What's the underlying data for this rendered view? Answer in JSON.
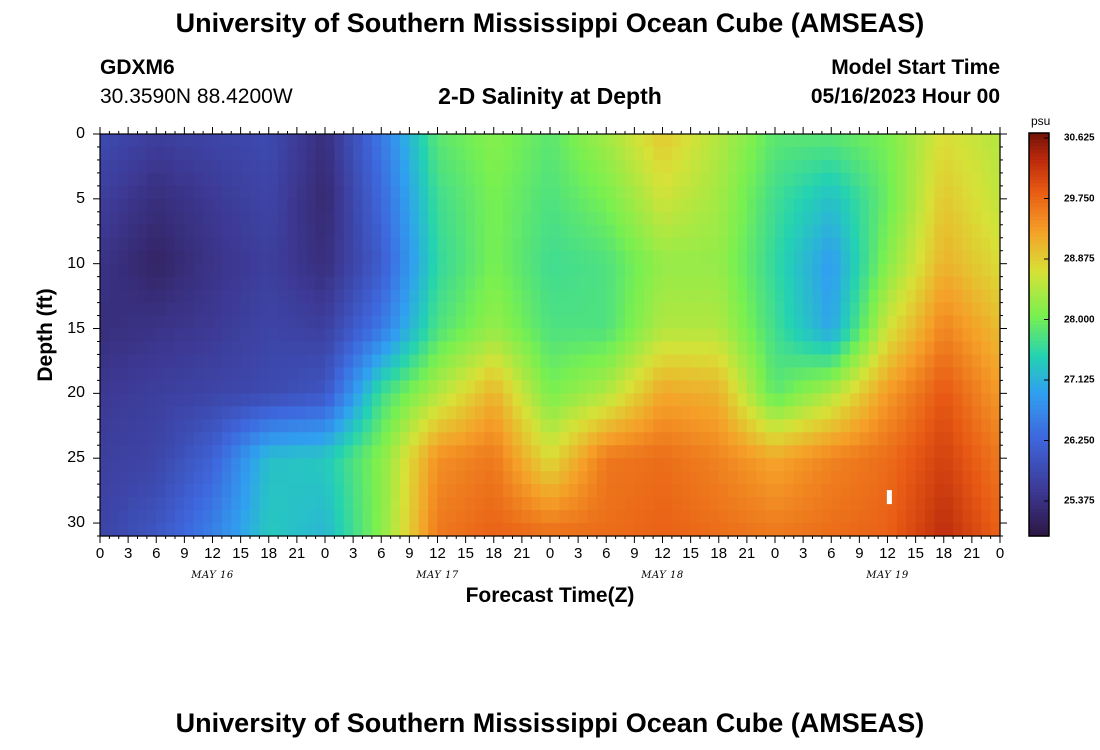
{
  "header": {
    "title": "University of Southern Mississippi Ocean Cube (AMSEAS)",
    "station_id": "GDXM6",
    "coords": "30.3590N  88.4200W",
    "subtitle": "2-D Salinity at Depth",
    "model_start_label": "Model Start Time",
    "model_start_value": "05/16/2023 Hour 00"
  },
  "footer": {
    "title": "University of Southern Mississippi Ocean Cube (AMSEAS)"
  },
  "chart_data": {
    "type": "heatmap",
    "title": "2-D Salinity at Depth",
    "xlabel": "Forecast Time(Z)",
    "ylabel": "Depth (ft)",
    "colorbar_unit": "psu",
    "x_range_hours": [
      0,
      96
    ],
    "y_range_ft": [
      0,
      31
    ],
    "x_tick_labels": [
      "0",
      "3",
      "6",
      "9",
      "12",
      "15",
      "18",
      "21",
      "0",
      "3",
      "6",
      "9",
      "12",
      "15",
      "18",
      "21",
      "0",
      "3",
      "6",
      "9",
      "12",
      "15",
      "18",
      "21",
      "0",
      "3",
      "6",
      "9",
      "12",
      "15",
      "18",
      "21",
      "0"
    ],
    "day_labels": [
      {
        "label": "MAY 16",
        "hour": 12
      },
      {
        "label": "MAY 17",
        "hour": 36
      },
      {
        "label": "MAY 18",
        "hour": 60
      },
      {
        "label": "MAY 19",
        "hour": 84
      }
    ],
    "y_ticks": [
      0,
      5,
      10,
      15,
      20,
      25,
      30
    ],
    "colorbar_ticks": [
      "30.625",
      "29.750",
      "28.875",
      "28.000",
      "27.125",
      "26.250",
      "25.375"
    ],
    "color_range": [
      24.9,
      30.9
    ],
    "grid_hours": [
      0,
      6,
      12,
      18,
      24,
      30,
      36,
      42,
      48,
      54,
      60,
      66,
      72,
      78,
      84,
      90,
      96
    ],
    "grid_depths_ft": [
      0,
      5,
      10,
      15,
      20,
      25,
      31
    ],
    "salinity_psu": [
      [
        25.9,
        25.7,
        25.8,
        25.9,
        25.4,
        26.6,
        28.0,
        28.3,
        28.0,
        28.5,
        29.1,
        28.6,
        28.0,
        28.0,
        28.2,
        28.9,
        28.6
      ],
      [
        25.7,
        25.4,
        25.6,
        25.8,
        25.3,
        26.4,
        27.8,
        28.2,
        27.9,
        28.2,
        28.8,
        28.5,
        27.8,
        27.4,
        28.1,
        29.1,
        28.7
      ],
      [
        25.5,
        25.2,
        25.5,
        25.7,
        25.4,
        26.2,
        27.7,
        28.2,
        27.8,
        27.9,
        28.4,
        28.4,
        27.7,
        27.0,
        28.3,
        29.3,
        28.9
      ],
      [
        25.4,
        25.5,
        25.6,
        25.8,
        25.7,
        26.6,
        27.9,
        28.4,
        27.9,
        27.9,
        28.6,
        28.6,
        27.8,
        27.1,
        28.8,
        29.7,
        29.2
      ],
      [
        25.6,
        25.7,
        25.8,
        25.9,
        26.1,
        27.8,
        28.6,
        29.3,
        28.2,
        28.6,
        29.4,
        29.3,
        28.0,
        28.6,
        29.5,
        30.1,
        29.5
      ],
      [
        25.7,
        25.8,
        26.3,
        27.4,
        27.5,
        28.3,
        29.6,
        29.8,
        28.9,
        29.8,
        29.9,
        29.7,
        29.4,
        29.7,
        29.9,
        30.3,
        29.8
      ],
      [
        25.8,
        26.1,
        26.7,
        27.5,
        27.3,
        28.3,
        29.8,
        30.0,
        29.9,
        29.9,
        30.0,
        29.9,
        29.8,
        29.9,
        30.0,
        30.5,
        30.0
      ]
    ],
    "annotation": {
      "hour": 84.2,
      "depth_ft": 28
    }
  }
}
